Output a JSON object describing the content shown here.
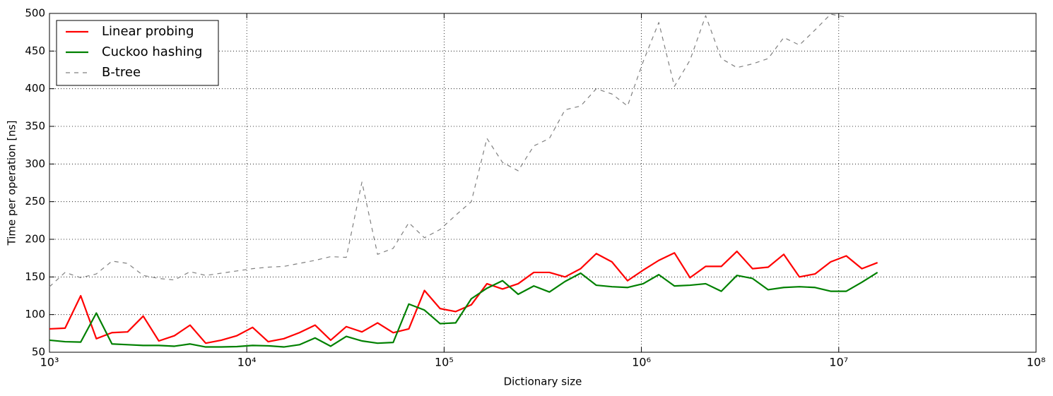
{
  "chart_data": {
    "type": "line",
    "x_label": "Dictionary size",
    "y_label": "Time per operation [ns]",
    "x_scale": "log",
    "xlim": [
      1000,
      100000000
    ],
    "xticks": [
      {
        "value": 1000,
        "label": "10³"
      },
      {
        "value": 10000,
        "label": "10⁴"
      },
      {
        "value": 100000,
        "label": "10⁵"
      },
      {
        "value": 1000000,
        "label": "10⁶"
      },
      {
        "value": 10000000,
        "label": "10⁷"
      },
      {
        "value": 100000000,
        "label": "10⁸"
      }
    ],
    "ylim": [
      50,
      500
    ],
    "yticks": [
      50,
      100,
      150,
      200,
      250,
      300,
      350,
      400,
      450,
      500
    ],
    "grid": true,
    "legend": "upper-left",
    "x": [
      1000,
      1200,
      1440,
      1728,
      2074,
      2488,
      2986,
      3583,
      4300,
      5160,
      6192,
      7430,
      8916,
      10699,
      12839,
      15407,
      18488,
      22186,
      26623,
      31948,
      38338,
      46005,
      55206,
      66247,
      79497,
      95396,
      114475,
      137371,
      164845,
      197814,
      237376,
      284852,
      341822,
      410186,
      492224,
      590668,
      708802,
      850562,
      1020675,
      1224810,
      1469772,
      1763726,
      2116471,
      2539765,
      3047718,
      3657262,
      4388714,
      5266457,
      6319749,
      7583698,
      9100438,
      10920526,
      13104631,
      15725557
    ],
    "series": [
      {
        "name": "Linear probing",
        "color": "#ff0000",
        "style": "solid",
        "values": [
          81,
          82,
          125,
          68,
          76,
          77,
          98,
          65,
          72,
          86,
          62,
          66,
          72,
          83,
          64,
          68,
          76,
          86,
          66,
          84,
          77,
          89,
          76,
          81,
          132,
          108,
          104,
          113,
          141,
          134,
          141,
          156,
          156,
          150,
          161,
          181,
          170,
          145,
          159,
          172,
          182,
          149,
          164,
          164,
          184,
          161,
          163,
          180,
          150,
          154,
          170,
          178,
          161,
          169
        ]
      },
      {
        "name": "Cuckoo hashing",
        "color": "#008000",
        "style": "solid",
        "values": [
          66,
          64,
          63.5,
          102,
          61,
          60,
          59,
          59,
          58,
          61,
          57,
          57,
          57.5,
          59,
          58.5,
          57,
          60,
          69,
          58,
          71,
          65,
          62,
          63,
          114,
          106,
          88,
          89,
          121,
          135,
          145,
          127,
          138,
          130,
          144,
          155,
          139,
          137,
          136,
          141,
          153,
          138,
          139,
          141,
          131,
          152,
          148,
          133,
          136,
          137,
          136,
          131,
          131,
          143,
          156
        ]
      },
      {
        "name": "B-tree",
        "color": "#808080",
        "style": "dashed",
        "values": [
          137,
          156,
          149,
          154,
          171,
          168,
          152,
          148,
          146,
          157,
          152,
          155,
          158,
          161,
          163,
          164,
          168,
          172,
          177,
          176,
          276,
          180,
          188,
          222,
          202,
          213,
          232,
          250,
          334,
          302,
          291,
          324,
          334,
          372,
          377,
          400,
          393,
          377,
          436,
          488,
          403,
          438,
          497,
          440,
          428,
          433,
          440,
          468,
          458,
          478,
          499,
          495,
          null,
          null
        ]
      }
    ]
  }
}
